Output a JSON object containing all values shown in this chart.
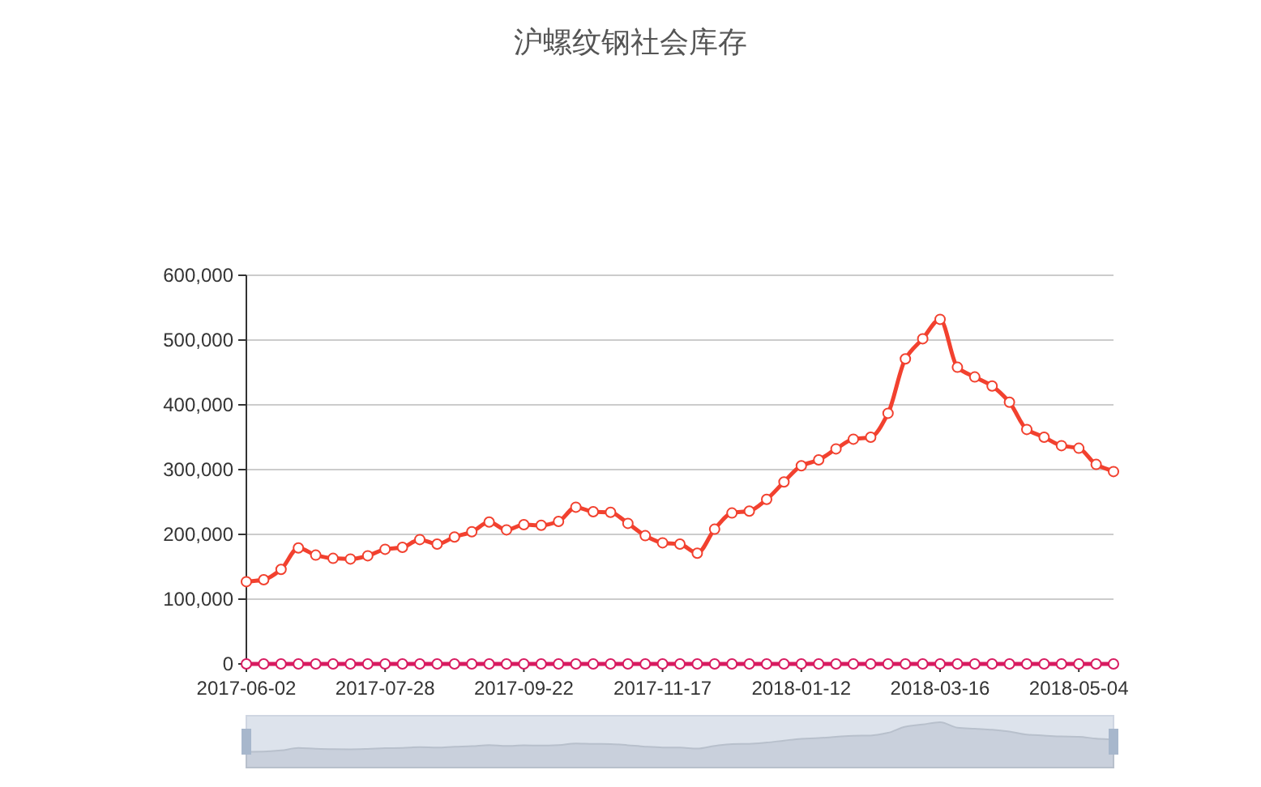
{
  "chart_data": {
    "type": "line",
    "title": "沪螺纹钢社会库存",
    "categories": [
      "2017-06-02",
      null,
      null,
      null,
      null,
      null,
      null,
      null,
      "2017-07-28",
      null,
      null,
      null,
      null,
      null,
      null,
      null,
      "2017-09-22",
      null,
      null,
      null,
      null,
      null,
      null,
      null,
      "2017-11-17",
      null,
      null,
      null,
      null,
      null,
      null,
      null,
      "2018-01-12",
      null,
      null,
      null,
      null,
      null,
      null,
      null,
      "2018-03-16",
      null,
      null,
      null,
      null,
      null,
      null,
      null,
      "2018-05-04",
      null,
      null
    ],
    "series": [
      {
        "color": "#f2412f",
        "values": [
          127000,
          130000,
          146000,
          179000,
          168000,
          163000,
          162000,
          167000,
          177000,
          180000,
          192000,
          185000,
          196000,
          204000,
          219000,
          207000,
          215000,
          214000,
          220000,
          242000,
          235000,
          234000,
          217000,
          198000,
          187000,
          185000,
          171000,
          208000,
          233000,
          236000,
          254000,
          281000,
          306000,
          315000,
          332000,
          347000,
          350000,
          387000,
          471000,
          502000,
          532000,
          458000,
          443000,
          429000,
          404000,
          362000,
          350000,
          337000,
          333000,
          308000,
          297000
        ]
      },
      {
        "color": "#d81b60",
        "values": [
          0,
          0,
          0,
          0,
          0,
          0,
          0,
          0,
          0,
          0,
          0,
          0,
          0,
          0,
          0,
          0,
          0,
          0,
          0,
          0,
          0,
          0,
          0,
          0,
          0,
          0,
          0,
          0,
          0,
          0,
          0,
          0,
          0,
          0,
          0,
          0,
          0,
          0,
          0,
          0,
          0,
          0,
          0,
          0,
          0,
          0,
          0,
          0,
          0,
          0,
          0
        ]
      }
    ],
    "ylim": [
      0,
      600000
    ],
    "yticks": [
      0,
      {
        "value": 100000,
        "label": "100,000"
      },
      {
        "value": 200000,
        "label": "200,000"
      },
      {
        "value": 300000,
        "label": "300,000"
      },
      {
        "value": 400000,
        "label": "400,000"
      },
      {
        "value": 500000,
        "label": "500,000"
      },
      {
        "value": 600000,
        "label": "600,000"
      }
    ],
    "grid": "y",
    "marker": "circle",
    "line_style": "solid"
  }
}
